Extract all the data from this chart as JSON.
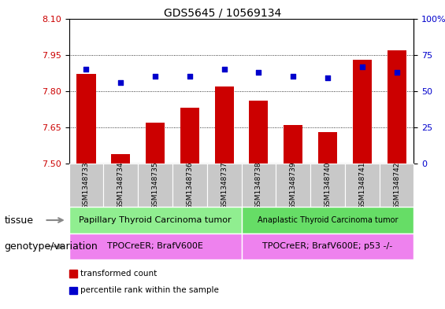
{
  "title": "GDS5645 / 10569134",
  "samples": [
    "GSM1348733",
    "GSM1348734",
    "GSM1348735",
    "GSM1348736",
    "GSM1348737",
    "GSM1348738",
    "GSM1348739",
    "GSM1348740",
    "GSM1348741",
    "GSM1348742"
  ],
  "bar_values": [
    7.87,
    7.54,
    7.67,
    7.73,
    7.82,
    7.76,
    7.66,
    7.63,
    7.93,
    7.97
  ],
  "percentile_values": [
    65,
    56,
    60,
    60,
    65,
    63,
    60,
    59,
    67,
    63
  ],
  "ylim_left": [
    7.5,
    8.1
  ],
  "ylim_right": [
    0,
    100
  ],
  "yticks_left": [
    7.5,
    7.65,
    7.8,
    7.95,
    8.1
  ],
  "yticks_right": [
    0,
    25,
    50,
    75,
    100
  ],
  "bar_color": "#cc0000",
  "dot_color": "#0000cc",
  "tissue_groups": [
    {
      "label": "Papillary Thyroid Carcinoma tumor",
      "start": 0,
      "end": 5,
      "color": "#90ee90"
    },
    {
      "label": "Anaplastic Thyroid Carcinoma tumor",
      "start": 5,
      "end": 10,
      "color": "#66dd66"
    }
  ],
  "genotype_groups": [
    {
      "label": "TPOCreER; BrafV600E",
      "start": 0,
      "end": 5,
      "color": "#ee82ee"
    },
    {
      "label": "TPOCreER; BrafV600E; p53 -/-",
      "start": 5,
      "end": 10,
      "color": "#ee82ee"
    }
  ],
  "tissue_label": "tissue",
  "genotype_label": "genotype/variation",
  "legend_items": [
    {
      "color": "#cc0000",
      "label": "transformed count"
    },
    {
      "color": "#0000cc",
      "label": "percentile rank within the sample"
    }
  ],
  "tick_bg_color": "#c8c8c8",
  "bar_width": 0.55,
  "title_fontsize": 10,
  "tick_fontsize": 8,
  "label_fontsize": 9,
  "sample_fontsize": 6.5
}
